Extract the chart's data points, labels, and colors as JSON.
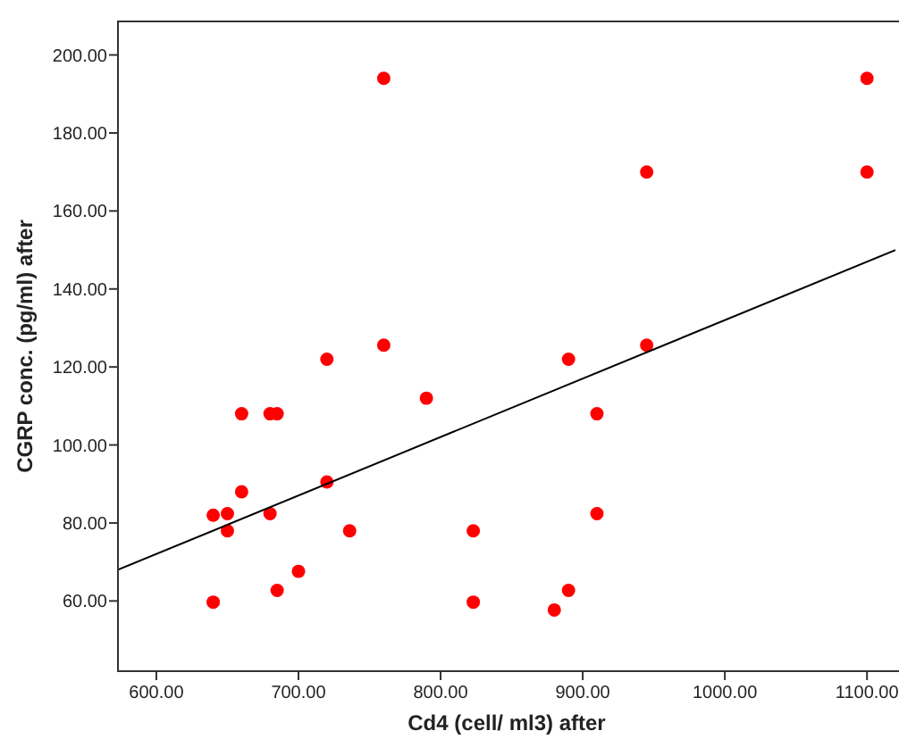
{
  "chart_data": {
    "type": "scatter",
    "xlabel": "Cd4 (cell/ ml3) after",
    "ylabel": "CGRP conc. (pg/ml) after",
    "xlim": [
      573,
      1120
    ],
    "ylim": [
      42,
      208.6
    ],
    "xticks": [
      {
        "value": 600,
        "label": "600.00"
      },
      {
        "value": 700,
        "label": "700.00"
      },
      {
        "value": 800,
        "label": "800.00"
      },
      {
        "value": 900,
        "label": "900.00"
      },
      {
        "value": 1000,
        "label": "1000.00"
      },
      {
        "value": 1100,
        "label": "1100.00"
      }
    ],
    "yticks": [
      {
        "value": 60,
        "label": "60.00"
      },
      {
        "value": 80,
        "label": "80.00"
      },
      {
        "value": 100,
        "label": "100.00"
      },
      {
        "value": 120,
        "label": "120.00"
      },
      {
        "value": 140,
        "label": "140.00"
      },
      {
        "value": 160,
        "label": "160.00"
      },
      {
        "value": 180,
        "label": "180.00"
      },
      {
        "value": 200,
        "label": "200.00"
      }
    ],
    "grid": false,
    "marker": "circle",
    "series": [
      {
        "color": "#ff0000",
        "x": [
          760,
          1100,
          945,
          1100,
          760,
          720,
          890,
          945,
          790,
          660,
          680,
          685,
          910,
          660,
          720,
          640,
          650,
          680,
          910,
          650,
          736,
          823,
          700,
          685,
          890,
          640,
          823,
          880
        ],
        "values": [
          194,
          194,
          170,
          170,
          125.6,
          122,
          122,
          125.6,
          112,
          108,
          108,
          108,
          108,
          88,
          90.5,
          82,
          82.4,
          82.4,
          82.4,
          78,
          78,
          78,
          67.6,
          62.7,
          62.7,
          59.7,
          59.7,
          57.7
        ]
      },
      {
        "type": "line",
        "color": "#000000",
        "x": [
          573,
          1120
        ],
        "values": [
          68,
          150
        ],
        "marker": "none"
      }
    ]
  }
}
